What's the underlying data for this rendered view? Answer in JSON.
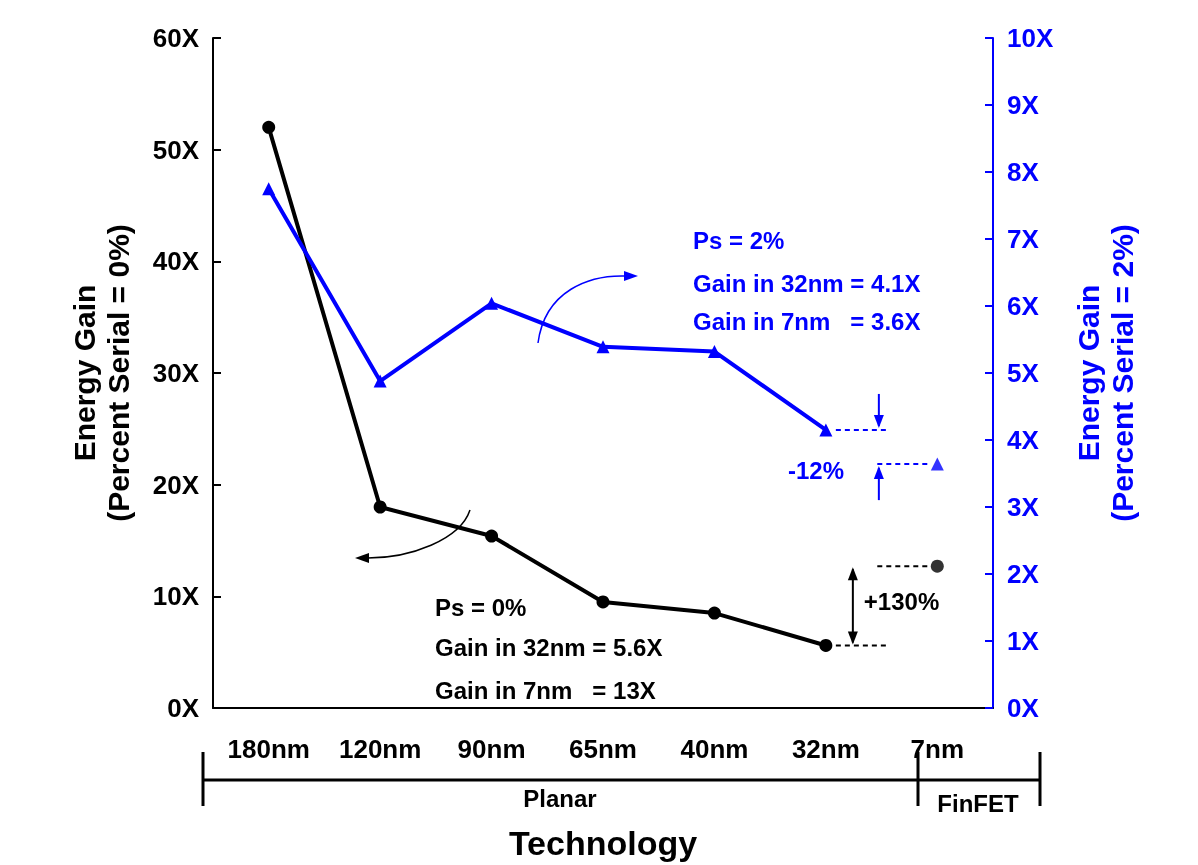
{
  "chart_data": {
    "type": "line",
    "xlabel": "Technology",
    "ylabel": "Energy Gain\n(Percent Serial = 0%)",
    "y2label": "Energy Gain\n(Percent Serial = 2%)",
    "categories": [
      "180nm",
      "120nm",
      "90nm",
      "65nm",
      "40nm",
      "32nm",
      "7nm"
    ],
    "series": [
      {
        "color": "#000000",
        "marker": "circle",
        "values": [
          52,
          18,
          15.4,
          9.5,
          8.5,
          5.6,
          null
        ]
      },
      {
        "color": "#0000ff",
        "marker": "triangle",
        "axis": "y2",
        "values": [
          7.75,
          4.88,
          6.04,
          5.39,
          5.32,
          4.15,
          null
        ]
      },
      {
        "type": "scatter",
        "color": "#000000",
        "marker": "circle",
        "values": [
          null,
          null,
          null,
          null,
          null,
          null,
          12.7
        ]
      },
      {
        "type": "scatter",
        "color": "#0000ff",
        "marker": "triangle",
        "axis": "y2",
        "values": [
          null,
          null,
          null,
          null,
          null,
          null,
          3.64
        ]
      }
    ],
    "ylim": [
      0,
      60
    ],
    "yticks": [
      {
        "value": 0,
        "label": "0X"
      },
      {
        "value": 10,
        "label": "10X"
      },
      {
        "value": 20,
        "label": "20X"
      },
      {
        "value": 30,
        "label": "30X"
      },
      {
        "value": 40,
        "label": "40X"
      },
      {
        "value": 50,
        "label": "50X"
      },
      {
        "value": 60,
        "label": "60X"
      }
    ],
    "y2lim": [
      0,
      10
    ],
    "y2ticks": [
      {
        "value": 0,
        "label": "0X"
      },
      {
        "value": 1,
        "label": "1X"
      },
      {
        "value": 2,
        "label": "2X"
      },
      {
        "value": 3,
        "label": "3X"
      },
      {
        "value": 4,
        "label": "4X"
      },
      {
        "value": 5,
        "label": "5X"
      },
      {
        "value": 6,
        "label": "6X"
      },
      {
        "value": 7,
        "label": "7X"
      },
      {
        "value": 8,
        "label": "8X"
      },
      {
        "value": 9,
        "label": "9X"
      },
      {
        "value": 10,
        "label": "10X"
      }
    ],
    "annotations": [
      "Ps = 2%",
      "Gain in 32nm = 4.1X",
      "Gain in 7nm   = 3.6X",
      "-12%",
      {
        "text": "+130%",
        "x": "32nm",
        "y": 5.6
      },
      "Ps = 0%",
      "Gain in 32nm = 5.6X",
      "Gain in 7nm   = 13X",
      "Planar",
      "FinFET"
    ],
    "grid": false,
    "line_style": "solid"
  }
}
